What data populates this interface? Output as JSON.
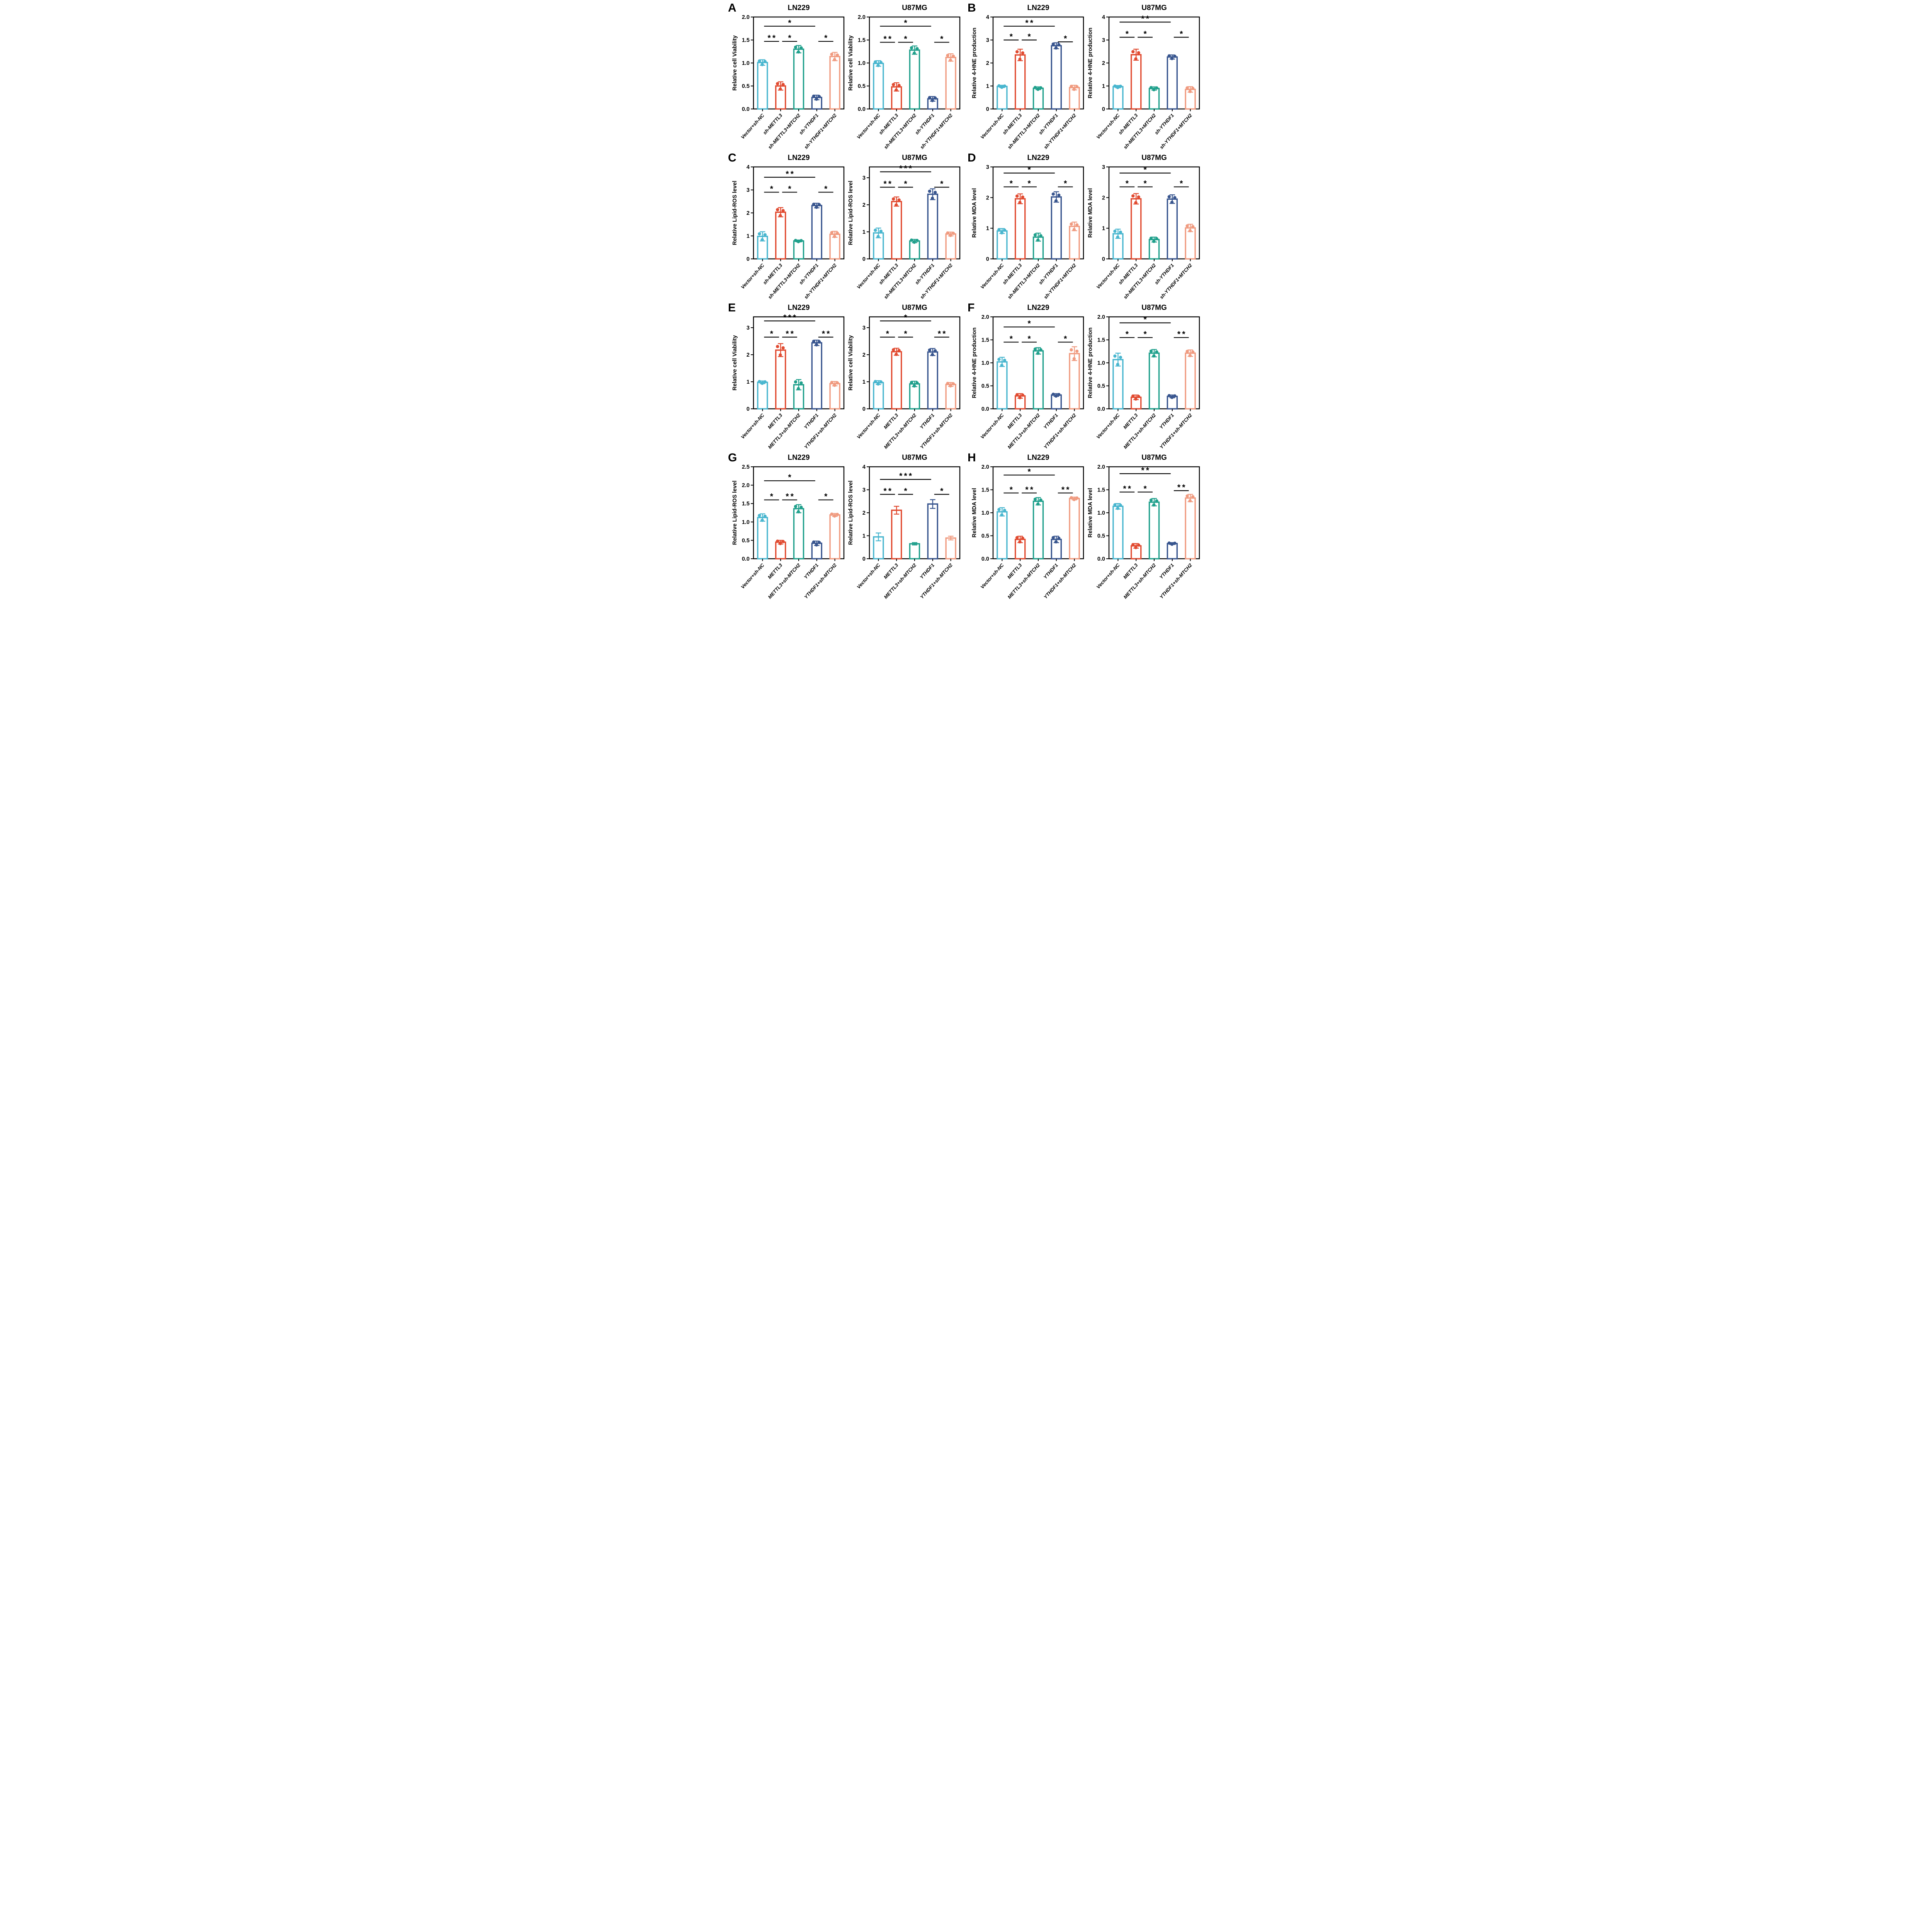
{
  "figure": {
    "panels": [
      {
        "label": "A",
        "charts": [
          0,
          1
        ]
      },
      {
        "label": "B",
        "charts": [
          2,
          3
        ]
      },
      {
        "label": "C",
        "charts": [
          4,
          5
        ]
      },
      {
        "label": "D",
        "charts": [
          6,
          7
        ]
      },
      {
        "label": "E",
        "charts": [
          8,
          9
        ]
      },
      {
        "label": "F",
        "charts": [
          10,
          11
        ]
      },
      {
        "label": "G",
        "charts": [
          12,
          13
        ]
      },
      {
        "label": "H",
        "charts": [
          14,
          15
        ]
      }
    ]
  },
  "palette": {
    "bar_colors": [
      "#49B6CF",
      "#E14B31",
      "#20A08C",
      "#39568F",
      "#F09B80"
    ],
    "axis_color": "#000000",
    "sig_color": "#000000"
  },
  "chart_data": [
    {
      "panel": "A",
      "type": "bar",
      "title": "LN229",
      "ylabel": "Relative cell Viability",
      "categories": [
        "Vector+sh-NC",
        "sh-METTL3",
        "sh-METTL3+MTCH2",
        "sh-YTHDF1",
        "sh-YTHDF1+MTCH2"
      ],
      "values": [
        1.01,
        0.5,
        1.3,
        0.25,
        1.14
      ],
      "errors": [
        0.06,
        0.09,
        0.08,
        0.05,
        0.09
      ],
      "ylim": [
        0,
        2
      ],
      "yticks": [
        0,
        0.5,
        1,
        1.5,
        2
      ],
      "ydec": 1,
      "dots": true,
      "significance": [
        [
          0,
          1,
          "**",
          1.47
        ],
        [
          1,
          2,
          "*",
          1.47
        ],
        [
          3,
          4,
          "*",
          1.47
        ],
        [
          0,
          3,
          "*",
          1.8
        ]
      ]
    },
    {
      "panel": "A",
      "type": "bar",
      "title": "U87MG",
      "ylabel": "Relative cell Viability",
      "categories": [
        "Vector+sh-NC",
        "sh-METTL3",
        "sh-METTL3+MTCH2",
        "sh-YTHDF1",
        "sh-YTHDF1+MTCH2"
      ],
      "values": [
        0.99,
        0.48,
        1.28,
        0.22,
        1.12
      ],
      "errors": [
        0.06,
        0.09,
        0.09,
        0.05,
        0.08
      ],
      "ylim": [
        0,
        2
      ],
      "yticks": [
        0,
        0.5,
        1,
        1.5,
        2
      ],
      "ydec": 1,
      "dots": true,
      "significance": [
        [
          0,
          1,
          "**",
          1.45
        ],
        [
          1,
          2,
          "*",
          1.45
        ],
        [
          3,
          4,
          "*",
          1.45
        ],
        [
          0,
          3,
          "*",
          1.8
        ]
      ]
    },
    {
      "panel": "B",
      "type": "bar",
      "title": "LN229",
      "ylabel": "Relative 4-HNE production",
      "categories": [
        "Vector+sh-NC",
        "sh-METTL3",
        "sh-METTL3+MTCH2",
        "sh-YTHDF1",
        "sh-YTHDF1+MTCH2"
      ],
      "values": [
        0.98,
        2.35,
        0.9,
        2.75,
        0.93
      ],
      "errors": [
        0.05,
        0.25,
        0.06,
        0.13,
        0.1
      ],
      "ylim": [
        0,
        4
      ],
      "yticks": [
        0,
        1,
        2,
        3,
        4
      ],
      "ydec": 0,
      "dots": true,
      "significance": [
        [
          0,
          1,
          "*",
          3.0
        ],
        [
          1,
          2,
          "*",
          3.0
        ],
        [
          3,
          4,
          "*",
          2.92
        ],
        [
          0,
          3,
          "**",
          3.6
        ]
      ]
    },
    {
      "panel": "B",
      "type": "bar",
      "title": "U87MG",
      "ylabel": "Relative 4-HNE production",
      "categories": [
        "Vector+sh-NC",
        "sh-METTL3",
        "sh-METTL3+MTCH2",
        "sh-YTHDF1",
        "sh-YTHDF1+MTCH2"
      ],
      "values": [
        0.97,
        2.36,
        0.89,
        2.26,
        0.85
      ],
      "errors": [
        0.05,
        0.24,
        0.07,
        0.09,
        0.12
      ],
      "ylim": [
        0,
        4
      ],
      "yticks": [
        0,
        1,
        2,
        3,
        4
      ],
      "ydec": 0,
      "dots": true,
      "significance": [
        [
          0,
          1,
          "*",
          3.12
        ],
        [
          1,
          2,
          "*",
          3.12
        ],
        [
          3,
          4,
          "*",
          3.12
        ],
        [
          0,
          3,
          "**",
          3.78
        ]
      ]
    },
    {
      "panel": "C",
      "type": "bar",
      "title": "LN229",
      "ylabel": "Relative Lipid-ROS level",
      "categories": [
        "Vector+sh-NC",
        "sh-METTL3",
        "sh-METTL3+MTCH2",
        "sh-YTHDF1",
        "sh-YTHDF1+MTCH2"
      ],
      "values": [
        0.98,
        2.03,
        0.78,
        2.32,
        1.07
      ],
      "errors": [
        0.2,
        0.2,
        0.04,
        0.1,
        0.13
      ],
      "ylim": [
        0,
        4
      ],
      "yticks": [
        0,
        1,
        2,
        3,
        4
      ],
      "ydec": 0,
      "dots": true,
      "significance": [
        [
          0,
          1,
          "*",
          2.9
        ],
        [
          1,
          2,
          "*",
          2.9
        ],
        [
          3,
          4,
          "*",
          2.9
        ],
        [
          0,
          3,
          "**",
          3.55
        ]
      ]
    },
    {
      "panel": "C",
      "type": "bar",
      "title": "U87MG",
      "ylabel": "Relative Lipid-ROS level",
      "categories": [
        "Vector+sh-NC",
        "sh-METTL3",
        "sh-METTL3+MTCH2",
        "sh-YTHDF1",
        "sh-YTHDF1+MTCH2"
      ],
      "values": [
        0.96,
        2.12,
        0.66,
        2.39,
        0.92
      ],
      "errors": [
        0.18,
        0.17,
        0.06,
        0.2,
        0.07
      ],
      "ylim": [
        0,
        3.4
      ],
      "yticks": [
        0,
        1,
        2,
        3
      ],
      "ydec": 0,
      "dots": true,
      "significance": [
        [
          0,
          1,
          "**",
          2.65
        ],
        [
          1,
          2,
          "*",
          2.65
        ],
        [
          3,
          4,
          "*",
          2.65
        ],
        [
          0,
          3,
          "***",
          3.22
        ]
      ]
    },
    {
      "panel": "D",
      "type": "bar",
      "title": "LN229",
      "ylabel": "Relative MDA level",
      "categories": [
        "Vector+sh-NC",
        "sh-METTL3",
        "sh-METTL3+MTCH2",
        "sh-YTHDF1",
        "sh-YTHDF1+MTCH2"
      ],
      "values": [
        0.91,
        1.96,
        0.71,
        2.02,
        1.06
      ],
      "errors": [
        0.08,
        0.16,
        0.13,
        0.17,
        0.14
      ],
      "ylim": [
        0,
        3
      ],
      "yticks": [
        0,
        1,
        2,
        3
      ],
      "ydec": 0,
      "dots": true,
      "significance": [
        [
          0,
          1,
          "*",
          2.35
        ],
        [
          1,
          2,
          "*",
          2.35
        ],
        [
          3,
          4,
          "*",
          2.35
        ],
        [
          0,
          3,
          "*",
          2.8
        ]
      ]
    },
    {
      "panel": "D",
      "type": "bar",
      "title": "U87MG",
      "ylabel": "Relative MDA level",
      "categories": [
        "Vector+sh-NC",
        "sh-METTL3",
        "sh-METTL3+MTCH2",
        "sh-YTHDF1",
        "sh-YTHDF1+MTCH2"
      ],
      "values": [
        0.82,
        1.96,
        0.63,
        1.95,
        1.01
      ],
      "errors": [
        0.15,
        0.17,
        0.08,
        0.14,
        0.12
      ],
      "ylim": [
        0,
        3
      ],
      "yticks": [
        0,
        1,
        2,
        3
      ],
      "ydec": 0,
      "dots": true,
      "significance": [
        [
          0,
          1,
          "*",
          2.35
        ],
        [
          1,
          2,
          "*",
          2.35
        ],
        [
          3,
          4,
          "*",
          2.35
        ],
        [
          0,
          3,
          "*",
          2.8
        ]
      ]
    },
    {
      "panel": "E",
      "type": "bar",
      "title": "LN229",
      "ylabel": "Relative cell Viability",
      "categories": [
        "Vector+sh-NC",
        "METTL3",
        "METTL3+sh-MTCH2",
        "YTHDF1",
        "YTHDF1+sh-MTCH2"
      ],
      "values": [
        0.98,
        2.17,
        0.89,
        2.44,
        0.93
      ],
      "errors": [
        0.05,
        0.24,
        0.19,
        0.1,
        0.08
      ],
      "ylim": [
        0,
        3.4
      ],
      "yticks": [
        0,
        1,
        2,
        3
      ],
      "ydec": 0,
      "dots": true,
      "significance": [
        [
          0,
          1,
          "*",
          2.65
        ],
        [
          1,
          2,
          "**",
          2.65
        ],
        [
          3,
          4,
          "**",
          2.65
        ],
        [
          0,
          3,
          "***",
          3.25
        ]
      ]
    },
    {
      "panel": "E",
      "type": "bar",
      "title": "U87MG",
      "ylabel": "Relative cell Viability",
      "categories": [
        "Vector+sh-NC",
        "METTL3",
        "METTL3+sh-MTCH2",
        "YTHDF1",
        "YTHDF1+sh-MTCH2"
      ],
      "values": [
        0.97,
        2.11,
        0.92,
        2.1,
        0.9
      ],
      "errors": [
        0.07,
        0.13,
        0.1,
        0.13,
        0.07
      ],
      "ylim": [
        0,
        3.4
      ],
      "yticks": [
        0,
        1,
        2,
        3
      ],
      "ydec": 0,
      "dots": true,
      "significance": [
        [
          0,
          1,
          "*",
          2.65
        ],
        [
          1,
          2,
          "*",
          2.65
        ],
        [
          3,
          4,
          "**",
          2.65
        ],
        [
          0,
          3,
          "*",
          3.25
        ]
      ]
    },
    {
      "panel": "F",
      "type": "bar",
      "title": "LN229",
      "ylabel": "Relative 4-HNE production",
      "categories": [
        "Vector+sh-NC",
        "METTL3",
        "METTL3+sh-MTCH2",
        "YTHDF1",
        "YTHDF1+sh-MTCH2"
      ],
      "values": [
        1.02,
        0.28,
        1.26,
        0.3,
        1.2
      ],
      "errors": [
        0.1,
        0.05,
        0.07,
        0.03,
        0.15
      ],
      "ylim": [
        0,
        2
      ],
      "yticks": [
        0,
        0.5,
        1,
        1.5,
        2
      ],
      "ydec": 1,
      "dots": true,
      "significance": [
        [
          0,
          1,
          "*",
          1.45
        ],
        [
          1,
          2,
          "*",
          1.45
        ],
        [
          3,
          4,
          "*",
          1.45
        ],
        [
          0,
          3,
          "*",
          1.78
        ]
      ]
    },
    {
      "panel": "F",
      "type": "bar",
      "title": "U87MG",
      "ylabel": "Relative 4-HNE production",
      "categories": [
        "Vector+sh-NC",
        "METTL3",
        "METTL3+sh-MTCH2",
        "YTHDF1",
        "YTHDF1+sh-MTCH2"
      ],
      "values": [
        1.07,
        0.25,
        1.21,
        0.27,
        1.21
      ],
      "errors": [
        0.14,
        0.05,
        0.08,
        0.03,
        0.07
      ],
      "ylim": [
        0,
        2
      ],
      "yticks": [
        0,
        0.5,
        1,
        1.5,
        2
      ],
      "ydec": 1,
      "dots": true,
      "significance": [
        [
          0,
          1,
          "*",
          1.55
        ],
        [
          1,
          2,
          "*",
          1.55
        ],
        [
          3,
          4,
          "**",
          1.55
        ],
        [
          0,
          3,
          "*",
          1.87
        ]
      ]
    },
    {
      "panel": "G",
      "type": "bar",
      "title": "LN229",
      "ylabel": "Relative Lipid-ROS level",
      "categories": [
        "Vector+sh-NC",
        "METTL3",
        "METTL3+sh-MTCH2",
        "YTHDF1",
        "YTHDF1+sh-MTCH2"
      ],
      "values": [
        1.12,
        0.45,
        1.36,
        0.42,
        1.19
      ],
      "errors": [
        0.1,
        0.05,
        0.11,
        0.06,
        0.04
      ],
      "ylim": [
        0,
        2.5
      ],
      "yticks": [
        0,
        0.5,
        1,
        1.5,
        2,
        2.5
      ],
      "ydec": 1,
      "dots": true,
      "significance": [
        [
          0,
          1,
          "*",
          1.6
        ],
        [
          1,
          2,
          "**",
          1.6
        ],
        [
          3,
          4,
          "*",
          1.6
        ],
        [
          0,
          3,
          "*",
          2.12
        ]
      ]
    },
    {
      "panel": "G",
      "type": "bar",
      "title": "U87MG",
      "ylabel": "Relative Lipid-ROS level",
      "categories": [
        "Vector+sh-NC",
        "METTL3",
        "METTL3+sh-MTCH2",
        "YTHDF1",
        "YTHDF1+sh-MTCH2"
      ],
      "values": [
        0.95,
        2.11,
        0.65,
        2.38,
        0.9
      ],
      "errors": [
        0.17,
        0.17,
        0.05,
        0.19,
        0.08
      ],
      "ylim": [
        0,
        4
      ],
      "yticks": [
        0,
        1,
        2,
        3,
        4
      ],
      "ydec": 0,
      "dots": false,
      "significance": [
        [
          0,
          1,
          "**",
          2.8
        ],
        [
          1,
          2,
          "*",
          2.8
        ],
        [
          3,
          4,
          "*",
          2.8
        ],
        [
          0,
          3,
          "***",
          3.45
        ]
      ]
    },
    {
      "panel": "H",
      "type": "bar",
      "title": "LN229",
      "ylabel": "Relative MDA level",
      "categories": [
        "Vector+sh-NC",
        "METTL3",
        "METTL3+sh-MTCH2",
        "YTHDF1",
        "YTHDF1+sh-MTCH2"
      ],
      "values": [
        1.02,
        0.42,
        1.25,
        0.42,
        1.31
      ],
      "errors": [
        0.09,
        0.07,
        0.08,
        0.07,
        0.03
      ],
      "ylim": [
        0,
        2
      ],
      "yticks": [
        0,
        0.5,
        1,
        1.5,
        2
      ],
      "ydec": 1,
      "dots": true,
      "significance": [
        [
          0,
          1,
          "*",
          1.43
        ],
        [
          1,
          2,
          "**",
          1.43
        ],
        [
          3,
          4,
          "**",
          1.43
        ],
        [
          0,
          3,
          "*",
          1.82
        ]
      ]
    },
    {
      "panel": "H",
      "type": "bar",
      "title": "U87MG",
      "ylabel": "Relative MDA level",
      "categories": [
        "Vector+sh-NC",
        "METTL3",
        "METTL3+sh-MTCH2",
        "YTHDF1",
        "YTHDF1+sh-MTCH2"
      ],
      "values": [
        1.14,
        0.28,
        1.23,
        0.33,
        1.32
      ],
      "errors": [
        0.06,
        0.05,
        0.08,
        0.02,
        0.08
      ],
      "ylim": [
        0,
        2
      ],
      "yticks": [
        0,
        0.5,
        1,
        1.5,
        2
      ],
      "ydec": 1,
      "dots": true,
      "significance": [
        [
          0,
          1,
          "**",
          1.45
        ],
        [
          1,
          2,
          "*",
          1.45
        ],
        [
          3,
          4,
          "**",
          1.48
        ],
        [
          0,
          3,
          "**",
          1.85
        ]
      ]
    }
  ]
}
